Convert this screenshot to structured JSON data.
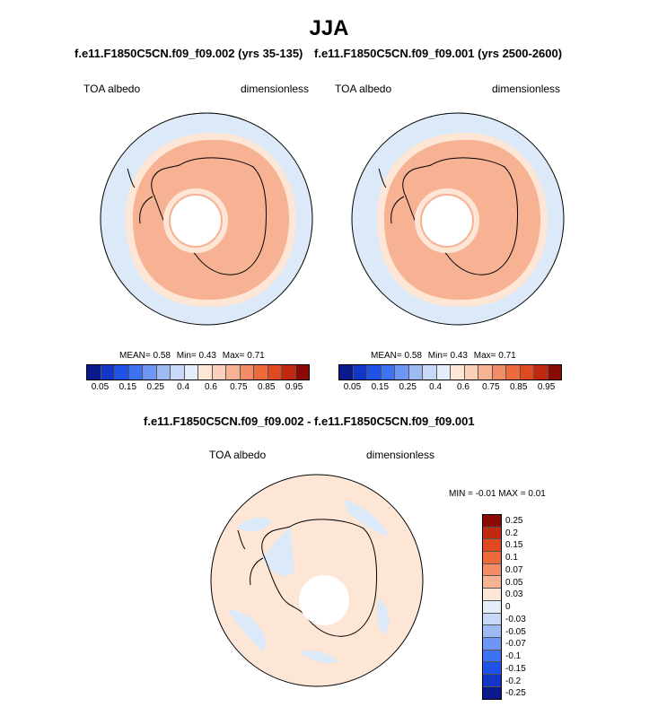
{
  "title": "JJA",
  "panels": [
    {
      "case_title": "f.e11.F1850C5CN.f09_f09.002 (yrs 35-135)",
      "variable": "TOA albedo",
      "units": "dimensionless",
      "stats": {
        "mean": "MEAN=  0.58",
        "min": "Min=  0.43",
        "max": "Max=  0.71"
      }
    },
    {
      "case_title": "f.e11.F1850C5CN.f09_f09.001 (yrs 2500-2600)",
      "variable": "TOA albedo",
      "units": "dimensionless",
      "stats": {
        "mean": "MEAN=  0.58",
        "min": "Min=  0.43",
        "max": "Max=  0.71"
      }
    }
  ],
  "diff_panel": {
    "title": "f.e11.F1850C5CN.f09_f09.002 - f.e11.F1850C5CN.f09_f09.001",
    "variable": "TOA albedo",
    "units": "dimensionless",
    "minmax": "MIN =  -0.01 MAX =   0.01"
  },
  "colorbar_abs": {
    "colors": [
      "#0a1a8c",
      "#1236c8",
      "#1f52e6",
      "#3d72f2",
      "#6e96f4",
      "#9ebaf2",
      "#c8d8f6",
      "#e4eefb",
      "#fde6d6",
      "#fbd0b8",
      "#f7b294",
      "#f28c66",
      "#ee6a3c",
      "#e04a20",
      "#c02810",
      "#8c0a06"
    ],
    "labels": [
      "0.05",
      "0.15",
      "0.25",
      "0.4",
      "0.6",
      "0.75",
      "0.85",
      "0.95"
    ]
  },
  "colorbar_diff": {
    "colors": [
      "#8c0a06",
      "#c02810",
      "#e04a20",
      "#ee6a3c",
      "#f28c66",
      "#f7b294",
      "#fde6d6",
      "#e4eefb",
      "#c8d8f6",
      "#9ebaf2",
      "#6e96f4",
      "#3d72f2",
      "#1f52e6",
      "#1236c8",
      "#0a1a8c"
    ],
    "labels": [
      "0.25",
      "0.2",
      "0.15",
      "0.1",
      "0.07",
      "0.05",
      "0.03",
      "0",
      "-0.03",
      "-0.05",
      "-0.07",
      "-0.1",
      "-0.15",
      "-0.2",
      "-0.25"
    ]
  }
}
